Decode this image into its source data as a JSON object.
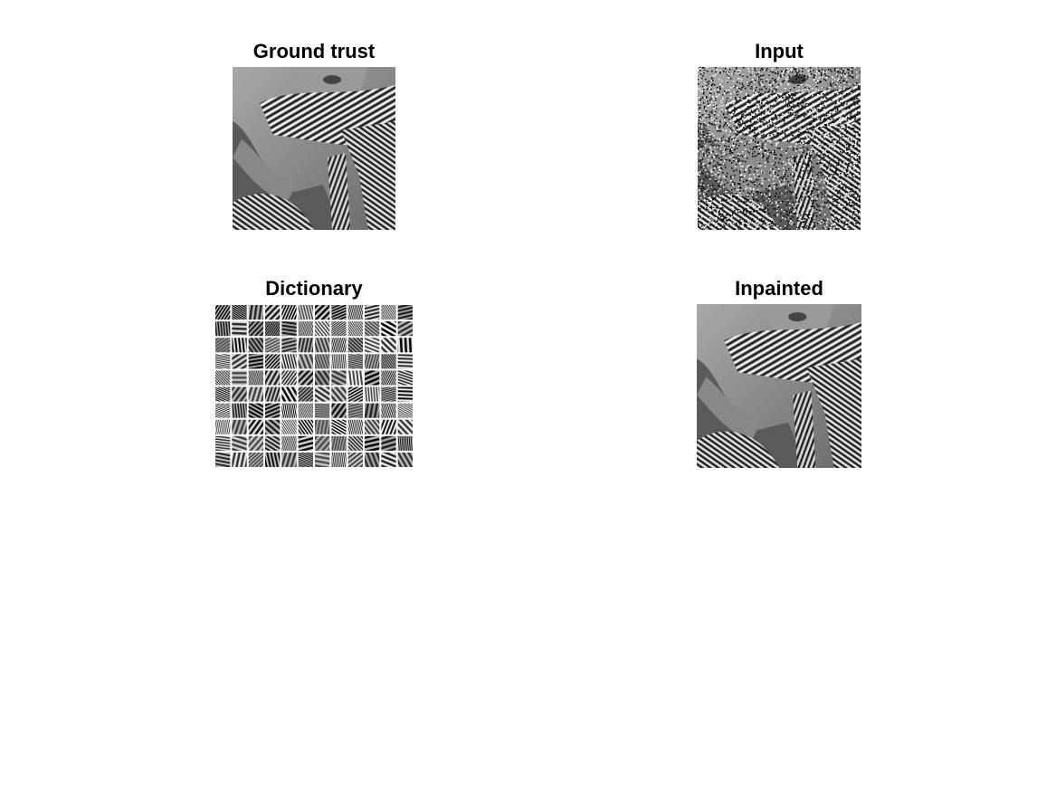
{
  "figure": {
    "panels": [
      {
        "key": "ground",
        "title": "Ground trust"
      },
      {
        "key": "input",
        "title": "Input"
      },
      {
        "key": "dictionary",
        "title": "Dictionary"
      },
      {
        "key": "inpainted",
        "title": "Inpainted"
      }
    ]
  },
  "dictionary_grid": {
    "rows": 10,
    "cols": 12
  }
}
